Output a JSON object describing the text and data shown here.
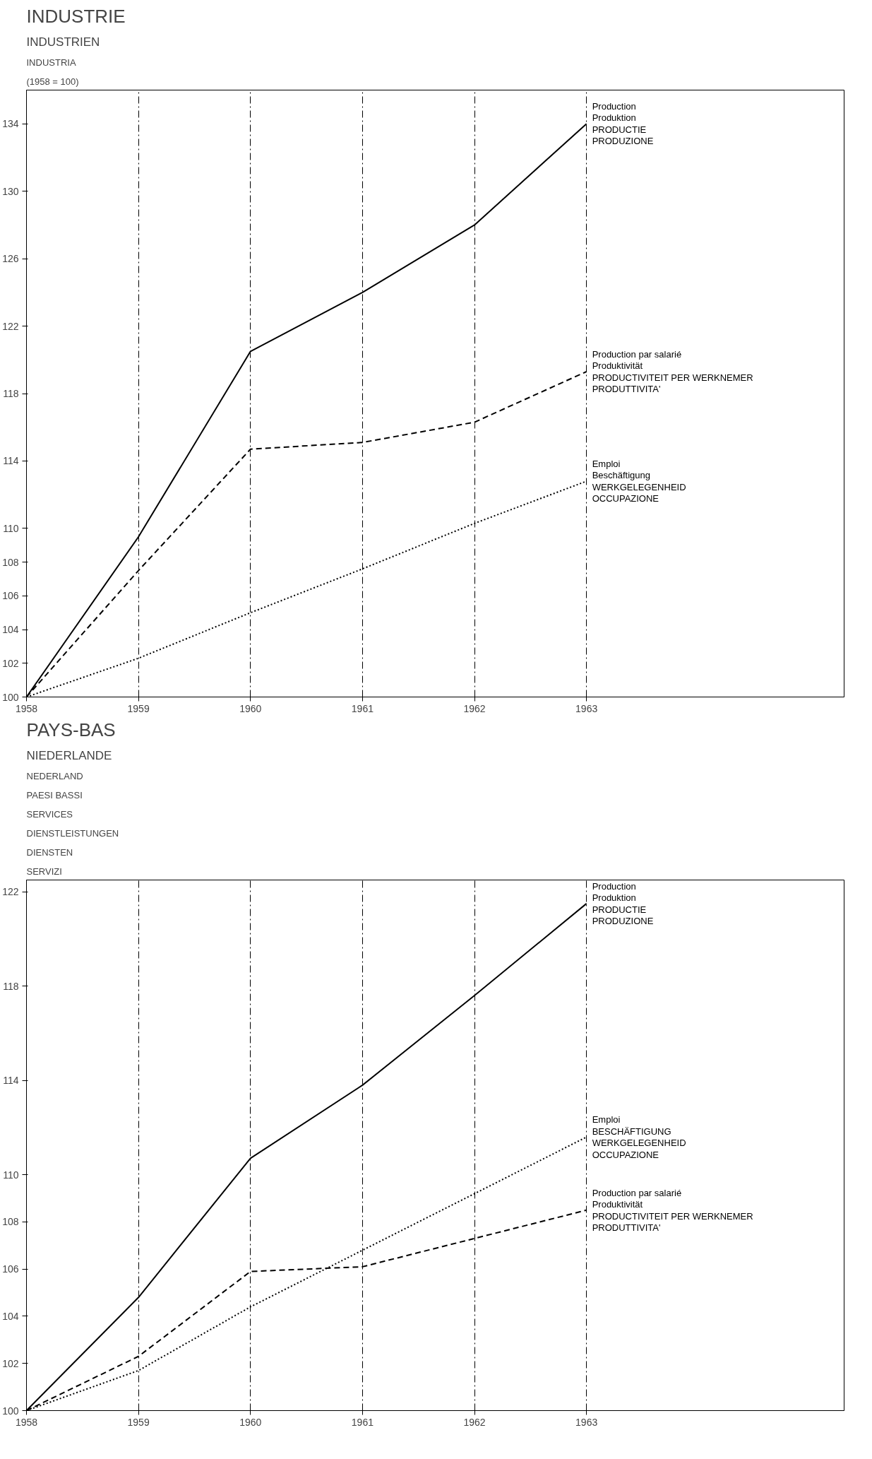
{
  "chart_data": [
    {
      "type": "line",
      "title": "INDUSTRIE",
      "subtitle": "INDUSTRIEN",
      "annotations": [
        "INDUSTRIA",
        "(1958 = 100)"
      ],
      "x": [
        1958,
        1959,
        1960,
        1961,
        1962,
        1963
      ],
      "series": [
        {
          "name": "Production\nProduktion\nPRODUCTIE\nPRODUZIONE",
          "color": "#000000",
          "line_style": "solid",
          "values": [
            100,
            109.5,
            120.5,
            124,
            128,
            134
          ]
        },
        {
          "name": "Production par salarié\nProduktivität\nPRODUCTIVITEIT PER WERKNEMER\nPRODUTTIVITA'",
          "color": "#000000",
          "line_style": "dashed",
          "values": [
            100,
            107.5,
            114.7,
            115.1,
            116.3,
            119.3
          ]
        },
        {
          "name": "Emploi\nBeschäftigung\nWERKGELEGENHEID\nOCCUPAZIONE",
          "color": "#000000",
          "line_style": "dotted",
          "values": [
            100,
            102.3,
            105,
            107.6,
            110.3,
            112.8
          ]
        }
      ],
      "xlim": [
        1958,
        1965.3
      ],
      "xticks": [
        1958,
        1959,
        1960,
        1961,
        1962,
        1963
      ],
      "ylim": [
        100,
        136
      ],
      "yticks": [
        100,
        102,
        104,
        106,
        108,
        110,
        114,
        118,
        122,
        126,
        130,
        134
      ],
      "grid": "x",
      "marker": "none"
    },
    {
      "type": "line",
      "title": "PAYS-BAS",
      "subtitle": "NIEDERLANDE",
      "annotations": [
        "NEDERLAND",
        "PAESI BASSI",
        "SERVICES",
        "DIENSTLEISTUNGEN",
        "DIENSTEN",
        "SERVIZI"
      ],
      "x": [
        1958,
        1959,
        1960,
        1961,
        1962,
        1963
      ],
      "series": [
        {
          "name": "Production\nProduktion\nPRODUCTIE\nPRODUZIONE",
          "color": "#000000",
          "line_style": "solid",
          "values": [
            100,
            104.8,
            110.7,
            113.8,
            117.6,
            121.5
          ]
        },
        {
          "name": "Emploi\nBESCHÄFTIGUNG\nWERKGELEGENHEID\nOCCUPAZIONE",
          "color": "#000000",
          "line_style": "dotted",
          "values": [
            100,
            101.7,
            104.4,
            106.8,
            109.2,
            111.6
          ]
        },
        {
          "name": "Production par salarié\nProduktivität\nPRODUCTIVITEIT PER WERKNEMER\nPRODUTTIVITA'",
          "color": "#000000",
          "line_style": "dashed",
          "values": [
            100,
            102.3,
            105.9,
            106.1,
            107.3,
            108.5
          ]
        }
      ],
      "xlim": [
        1958,
        1965.3
      ],
      "xticks": [
        1958,
        1959,
        1960,
        1961,
        1962,
        1963
      ],
      "ylim": [
        100,
        122.5
      ],
      "yticks": [
        100,
        102,
        104,
        106,
        108,
        110,
        114,
        118,
        122
      ],
      "grid": "x",
      "marker": "none"
    }
  ]
}
